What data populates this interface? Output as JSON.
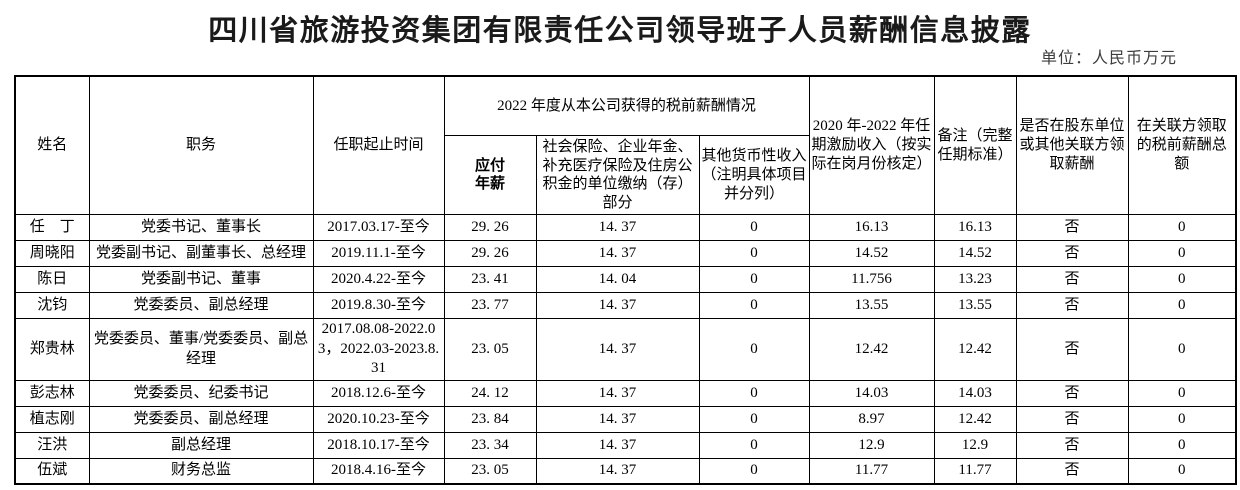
{
  "page": {
    "title": "四川省旅游投资集团有限责任公司领导班子人员薪酬信息披露",
    "unit_note": "单位：人民币万元"
  },
  "colors": {
    "text": "#000000",
    "border": "#000000",
    "note_text": "#3d3d3d",
    "background": "#ffffff"
  },
  "table": {
    "headers": {
      "name": "姓名",
      "position": "职务",
      "term": "任职起止时间",
      "salary_group": "2022 年度从本公司获得的税前薪酬情况",
      "payable": "应付年薪",
      "social": "社会保险、企业年金、补充医疗保险及住房公积金的单位缴纳（存）部分",
      "other": "其他货币性收入（注明具体项目并分列）",
      "incentive": "2020 年-2022 年任期激励收入（按实际在岗月份核定）",
      "remark": "备注（完整任期标准）",
      "related_pay": "是否在股东单位或其他关联方领取薪酬",
      "related_total": "在关联方领取的税前薪酬总额"
    },
    "rows": [
      {
        "name": "任　丁",
        "position": "党委书记、董事长",
        "term": "2017.03.17-至今",
        "payable": "29. 26",
        "social": "14. 37",
        "other": "0",
        "incentive": "16.13",
        "remark": "16.13",
        "related_pay": "否",
        "related_total": "0"
      },
      {
        "name": "周晓阳",
        "position": "党委副书记、副董事长、总经理",
        "term": "2019.11.1-至今",
        "payable": "29. 26",
        "social": "14. 37",
        "other": "0",
        "incentive": "14.52",
        "remark": "14.52",
        "related_pay": "否",
        "related_total": "0"
      },
      {
        "name": "陈日",
        "position": "党委副书记、董事",
        "term": "2020.4.22-至今",
        "payable": "23. 41",
        "social": "14. 04",
        "other": "0",
        "incentive": "11.756",
        "remark": "13.23",
        "related_pay": "否",
        "related_total": "0"
      },
      {
        "name": "沈钧",
        "position": "党委委员、副总经理",
        "term": "2019.8.30-至今",
        "payable": "23. 77",
        "social": "14. 37",
        "other": "0",
        "incentive": "13.55",
        "remark": "13.55",
        "related_pay": "否",
        "related_total": "0"
      },
      {
        "name": "郑贵林",
        "position": "党委委员、董事/党委委员、副总经理",
        "term": "2017.08.08-2022.03，2022.03-2023.8.31",
        "payable": "23. 05",
        "social": "14. 37",
        "other": "0",
        "incentive": "12.42",
        "remark": "12.42",
        "related_pay": "否",
        "related_total": "0"
      },
      {
        "name": "彭志林",
        "position": "党委委员、纪委书记",
        "term": "2018.12.6-至今",
        "payable": "24. 12",
        "social": "14. 37",
        "other": "0",
        "incentive": "14.03",
        "remark": "14.03",
        "related_pay": "否",
        "related_total": "0"
      },
      {
        "name": "植志刚",
        "position": "党委委员、副总经理",
        "term": "2020.10.23-至今",
        "payable": "23. 84",
        "social": "14. 37",
        "other": "0",
        "incentive": "8.97",
        "remark": "12.42",
        "related_pay": "否",
        "related_total": "0"
      },
      {
        "name": "汪洪",
        "position": "副总经理",
        "term": "2018.10.17-至今",
        "payable": "23. 34",
        "social": "14. 37",
        "other": "0",
        "incentive": "12.9",
        "remark": "12.9",
        "related_pay": "否",
        "related_total": "0"
      },
      {
        "name": "伍斌",
        "position": "财务总监",
        "term": "2018.4.16-至今",
        "payable": "23. 05",
        "social": "14. 37",
        "other": "0",
        "incentive": "11.77",
        "remark": "11.77",
        "related_pay": "否",
        "related_total": "0"
      }
    ]
  }
}
